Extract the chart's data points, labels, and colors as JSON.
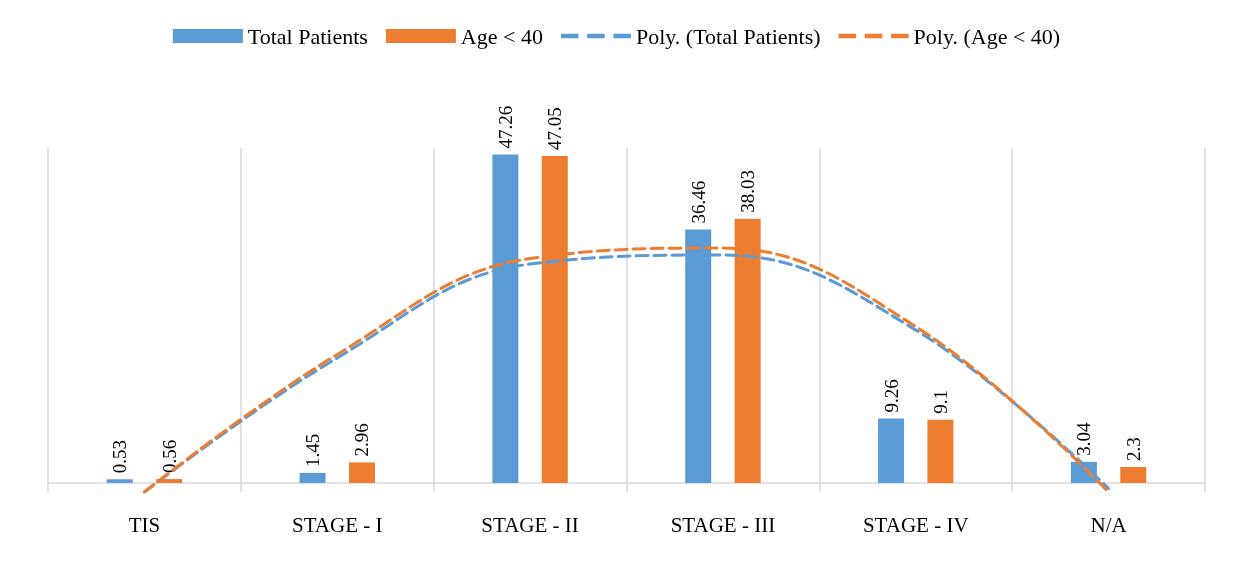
{
  "chart_data": {
    "type": "bar",
    "categories": [
      "TIS",
      "STAGE - I",
      "STAGE - II",
      "STAGE - III",
      "STAGE - IV",
      "N/A"
    ],
    "series": [
      {
        "name": "Total Patients",
        "color": "#5b9bd5",
        "values": [
          0.53,
          1.45,
          47.26,
          36.46,
          9.26,
          3.04
        ],
        "value_labels": [
          "0.53",
          "1.45",
          "47.26",
          "36.46",
          "9.26",
          "3.04"
        ]
      },
      {
        "name": "Age < 40",
        "color": "#ed7d31",
        "values": [
          0.56,
          2.96,
          47.05,
          38.03,
          9.1,
          2.3
        ],
        "value_labels": [
          "0.56",
          "2.96",
          "47.05",
          "38.03",
          "9.1",
          "2.3"
        ]
      },
      {
        "name": "Poly. (Total Patients)",
        "type": "line",
        "color": "#5b9bd5",
        "line_style": "dashed",
        "values": [
          -1.3,
          18,
          31.5,
          32.8,
          22,
          -0.8
        ]
      },
      {
        "name": "Poly. (Age < 40)",
        "type": "line",
        "color": "#ed7d31",
        "line_style": "dashed",
        "values": [
          -1.3,
          18.5,
          32.3,
          33.8,
          22.5,
          -1.3
        ]
      }
    ],
    "grid": "x",
    "legend": "top",
    "marker": "none"
  }
}
